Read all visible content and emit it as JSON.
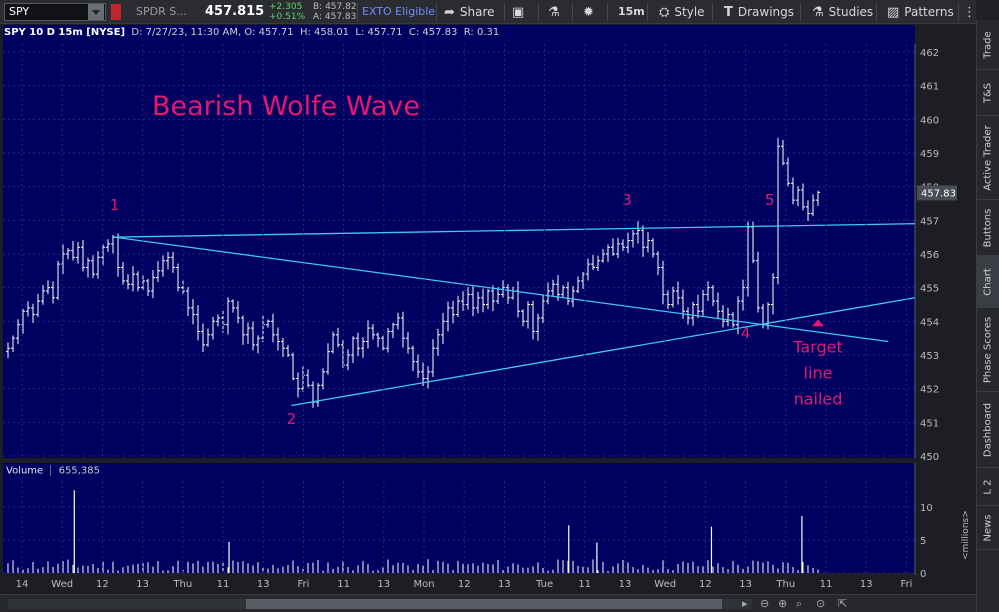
{
  "toolbar": {
    "symbol": "SPY",
    "description": "SPDR S...",
    "last_price": "457.815",
    "net_change": "+2.305",
    "pct_change": "+0.51%",
    "bid": "B: 457.82",
    "ask": "A: 457.83",
    "exto": "EXTO Eligible",
    "share": "Share",
    "timeframe": "15m",
    "style": "Style",
    "drawings": "Drawings",
    "studies": "Studies",
    "patterns": "Patterns"
  },
  "chart_header": {
    "title": "SPY 10 D 15m [NYSE]",
    "date": "D: 7/27/23, 11:30 AM",
    "open": "O: 457.71",
    "high": "H: 458.01",
    "low": "L: 457.71",
    "close": "C: 457.83",
    "range": "R: 0.31"
  },
  "volume_header": {
    "label": "Volume",
    "value": "655,385"
  },
  "sidebar_tabs": [
    "Trade",
    "T&S",
    "Active Trader",
    "Buttons",
    "Chart",
    "Phase Scores",
    "Dashboard",
    "L 2",
    "News"
  ],
  "colors": {
    "background": "#000060",
    "candle": "#ffffff",
    "trendline": "#3fc9f2",
    "annotation": "#e6176e",
    "price_tag": "#4a4d55"
  },
  "chart_data": [
    {
      "type": "candlestick",
      "title": "",
      "annotation_title": "Bearish Wolfe Wave",
      "price_scale": {
        "min": 450,
        "max": 462,
        "ticks": [
          450,
          451,
          452,
          453,
          454,
          455,
          456,
          457,
          458,
          459,
          460,
          461,
          462
        ]
      },
      "current_price_label": "457.83",
      "current_price": 457.83,
      "x_categories": [
        "14",
        "Wed",
        "12",
        "13",
        "Thu",
        "11",
        "13",
        "Fri",
        "11",
        "13",
        "Mon",
        "12",
        "13",
        "Tue",
        "11",
        "13",
        "Wed",
        "12",
        "13",
        "Thu",
        "11",
        "13",
        "Fri"
      ],
      "x_range": [
        0,
        23
      ],
      "x_note": "x is expressed in trading-session index along the time axis",
      "points": [
        {
          "label": "1",
          "x": 2.45,
          "price": 456.5
        },
        {
          "label": "2",
          "x": 6.85,
          "price": 451.5
        },
        {
          "label": "3",
          "x": 15.2,
          "price": 456.7
        },
        {
          "label": "4",
          "x": 18.4,
          "price": 453.85
        },
        {
          "label": "5",
          "x": 18.75,
          "price": 456.8
        }
      ],
      "point_label_positions": [
        {
          "label": "1",
          "x": 2.45,
          "price": 457.3
        },
        {
          "label": "2",
          "x": 6.85,
          "price": 450.95
        },
        {
          "label": "3",
          "x": 15.2,
          "price": 457.45
        },
        {
          "label": "4",
          "x": 18.15,
          "price": 453.5
        },
        {
          "label": "5",
          "x": 18.75,
          "price": 457.45
        }
      ],
      "trendlines": [
        {
          "name": "1-3 line",
          "x1": 2.45,
          "y1": 456.5,
          "x2": 23.2,
          "y2": 456.9
        },
        {
          "name": "1-4 target line",
          "x1": 2.45,
          "y1": 456.5,
          "x2": 21.7,
          "y2": 453.4
        },
        {
          "name": "2-4 line",
          "x1": 6.85,
          "y1": 451.5,
          "x2": 23.2,
          "y2": 454.7
        }
      ],
      "target_annotation": {
        "lines": [
          "Target",
          "line",
          "nailed"
        ],
        "x": 19.95,
        "price": 453.4
      },
      "target_arrow": {
        "x": 19.95,
        "price": 454.0
      },
      "candles_close": [
        453.2,
        453.5,
        453.9,
        454.3,
        454.4,
        454.2,
        454.6,
        454.9,
        455.0,
        454.7,
        455.7,
        456.0,
        456.1,
        455.9,
        456.2,
        455.6,
        455.8,
        455.4,
        455.9,
        456.2,
        456.3,
        456.5,
        455.6,
        455.2,
        455.1,
        455.4,
        455.0,
        455.2,
        454.9,
        455.3,
        455.5,
        455.8,
        455.9,
        455.6,
        455.0,
        454.9,
        454.4,
        454.2,
        453.7,
        453.3,
        453.6,
        454.0,
        454.1,
        453.9,
        454.6,
        454.4,
        454.1,
        453.6,
        453.8,
        453.3,
        453.5,
        453.9,
        454.0,
        453.6,
        453.4,
        453.2,
        453.0,
        452.3,
        452.0,
        452.4,
        452.1,
        451.6,
        452.1,
        452.5,
        453.1,
        453.6,
        453.3,
        452.7,
        453.0,
        453.5,
        453.2,
        453.4,
        453.8,
        453.6,
        453.5,
        453.2,
        453.7,
        453.9,
        454.1,
        453.5,
        453.2,
        452.8,
        452.5,
        452.3,
        452.5,
        453.2,
        453.6,
        454.0,
        454.4,
        454.2,
        454.6,
        454.5,
        454.8,
        454.4,
        454.7,
        454.5,
        454.9,
        454.6,
        454.8,
        455.0,
        454.7,
        454.9,
        454.3,
        454.0,
        454.5,
        453.7,
        454.1,
        454.6,
        454.9,
        455.1,
        454.8,
        455.0,
        454.6,
        454.9,
        455.2,
        455.4,
        455.7,
        455.6,
        455.8,
        456.0,
        456.2,
        456.0,
        456.3,
        456.2,
        456.4,
        456.6,
        456.7,
        456.2,
        456.4,
        456.0,
        455.6,
        454.8,
        454.5,
        454.9,
        454.7,
        454.3,
        454.1,
        454.5,
        454.3,
        454.8,
        455.0,
        454.6,
        454.3,
        454.0,
        454.2,
        453.9,
        454.6,
        455.0,
        456.8,
        455.8,
        454.4,
        453.9,
        454.5,
        455.3,
        459.2,
        458.7,
        458.1,
        457.6,
        457.9,
        457.4,
        457.2,
        457.6,
        457.83
      ]
    },
    {
      "type": "bar",
      "title": "",
      "ylabel": "<millions>",
      "ylim": [
        0,
        13
      ],
      "ticks": [
        0,
        5,
        10
      ],
      "spikes": [
        {
          "x": 1.45,
          "value": 12.5
        },
        {
          "x": 13.75,
          "value": 7.2
        },
        {
          "x": 17.3,
          "value": 7.0
        },
        {
          "x": 19.55,
          "value": 8.6
        },
        {
          "x": 14.45,
          "value": 4.6
        },
        {
          "x": 5.3,
          "value": 4.7
        }
      ]
    }
  ]
}
